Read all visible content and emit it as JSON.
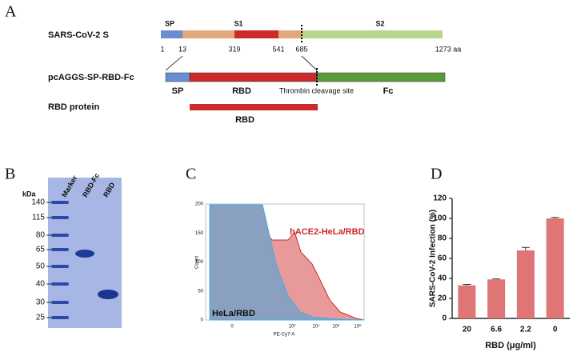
{
  "panel_labels": [
    "A",
    "B",
    "C",
    "D"
  ],
  "diagram": {
    "spike": {
      "label": "SARS-CoV-2 S",
      "domains": [
        "SP",
        "S1",
        "S2"
      ],
      "positions": [
        "1",
        "13",
        "319",
        "541",
        "685",
        "1273 aa"
      ]
    },
    "construct": {
      "label": "pcAGGS-SP-RBD-Fc",
      "parts": [
        "SP",
        "RBD",
        "Fc"
      ],
      "site": "Thrombin cleavage site"
    },
    "protein": {
      "label": "RBD protein",
      "part": "RBD"
    }
  },
  "gel": {
    "unit": "kDa",
    "lanes": [
      "Marker",
      "RBD-Fc",
      "RBD"
    ],
    "markers": [
      "140",
      "115",
      "80",
      "65",
      "50",
      "40",
      "30",
      "25"
    ]
  },
  "flow": {
    "ylabel": "Count",
    "xlabel": "PE-Cy7-A",
    "yticks": [
      "0",
      "50",
      "100",
      "150",
      "200"
    ],
    "xticks": [
      "0",
      "10³",
      "10⁴",
      "10⁵",
      "10⁶"
    ],
    "labels": [
      "hACE2-HeLa/RBD",
      "HeLa/RBD"
    ]
  },
  "chart_data": {
    "type": "bar",
    "ylabel": "SARS-CoV-2 Infection (%)",
    "xlabel": "RBD (μg/ml)",
    "categories": [
      "20",
      "6.6",
      "2.2",
      "0"
    ],
    "values": [
      33,
      39,
      68,
      100
    ],
    "errors": [
      1,
      0.5,
      3,
      1
    ],
    "color": "#e07575",
    "ylim": [
      0,
      120
    ],
    "yticks": [
      0,
      20,
      40,
      60,
      80,
      100,
      120
    ]
  }
}
